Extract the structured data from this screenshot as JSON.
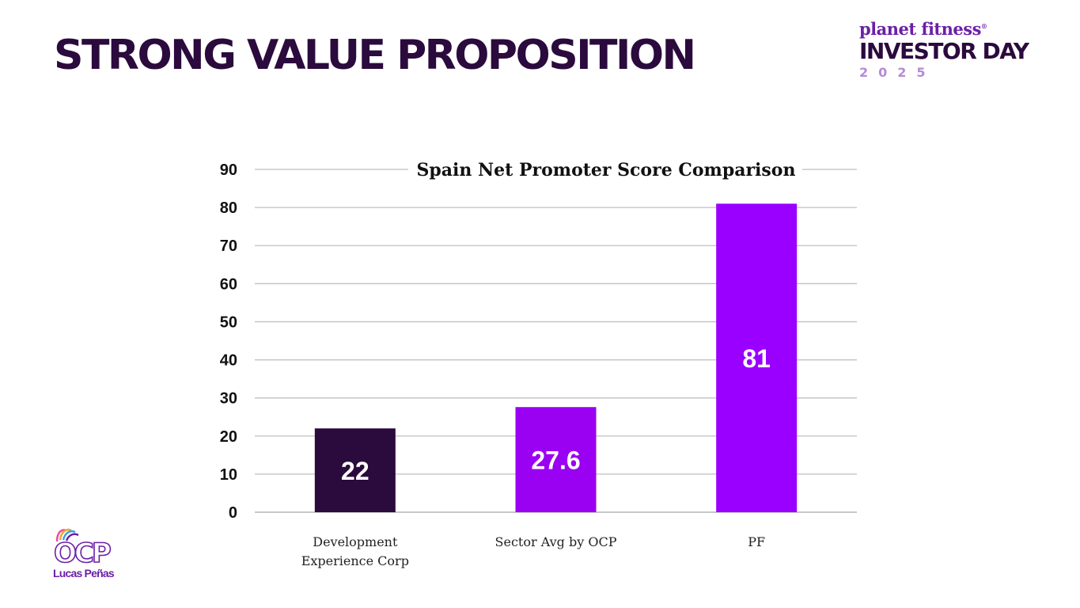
{
  "slide": {
    "title": "STRONG VALUE PROPOSITION"
  },
  "logo": {
    "brand": "planet fitness",
    "event": "INVESTOR DAY",
    "year": "2025"
  },
  "footer_logo": {
    "mark": "OCP",
    "name": "Lucas Peñas"
  },
  "colors": {
    "title": "#2b0a3d",
    "bar_dark": "#2b0a3d",
    "bar_purple": "#9a00f2",
    "bar_violet": "#9900ff",
    "grid": "#bfbfbf"
  },
  "chart_data": {
    "type": "bar",
    "title": "Spain Net Promoter Score Comparison",
    "categories": [
      [
        "Development",
        "Experience Corp"
      ],
      [
        "Sector Avg by OCP"
      ],
      [
        "PF"
      ]
    ],
    "values": [
      22,
      27.6,
      81
    ],
    "data_labels": [
      "22",
      "27.6",
      "81"
    ],
    "yticks": [
      0,
      10,
      20,
      30,
      40,
      50,
      60,
      70,
      80,
      90
    ],
    "ylim": [
      0,
      90
    ],
    "xlabel": "",
    "ylabel": "",
    "grid": true,
    "legend": "none"
  }
}
